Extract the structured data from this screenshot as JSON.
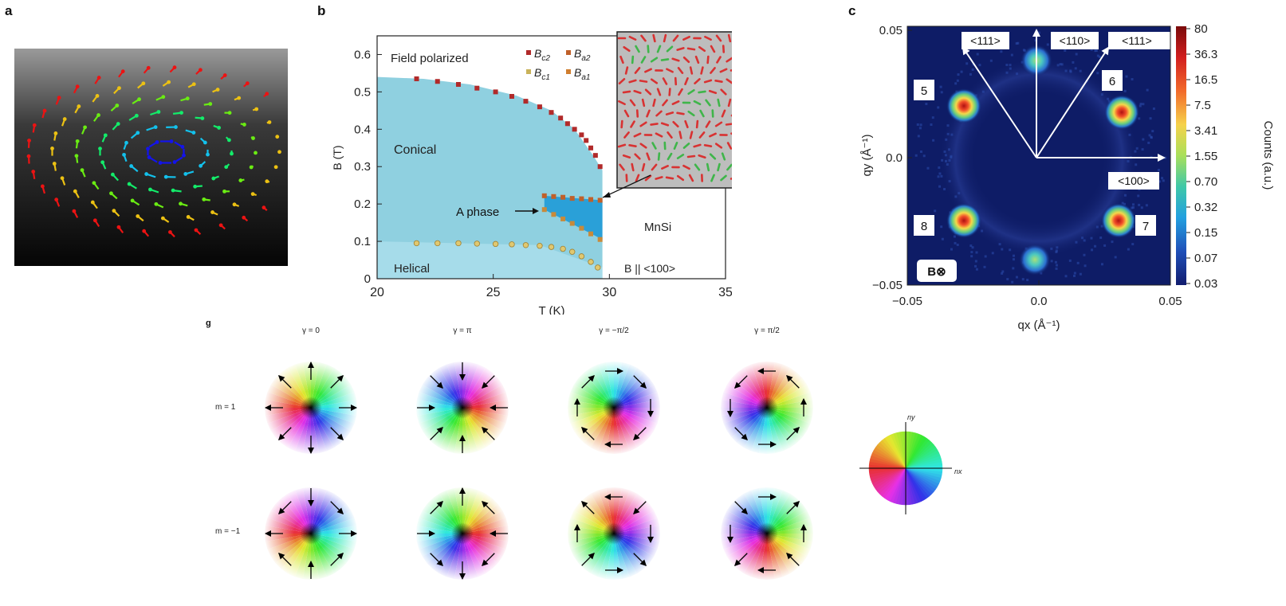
{
  "panels": {
    "a": {
      "letter": "a"
    },
    "b": {
      "letter": "b",
      "yaxis_label": "B (T)",
      "xaxis_label": "T (K)",
      "region_field_polarized": "Field polarized",
      "region_conical": "Conical",
      "region_a_phase": "A phase",
      "region_helical": "Helical",
      "material": "MnSi",
      "field_direction": "B || <100>",
      "legend": [
        {
          "symbol": "B",
          "sub": "c2",
          "color": "#b12a2a"
        },
        {
          "symbol": "B",
          "sub": "a2",
          "color": "#c0602a"
        },
        {
          "symbol": "B",
          "sub": "c1",
          "color": "#c9b25a"
        },
        {
          "symbol": "B",
          "sub": "a1",
          "color": "#d07e2f"
        }
      ],
      "xticks": [
        "20",
        "25",
        "30",
        "35"
      ],
      "yticks": [
        "0",
        "0.1",
        "0.2",
        "0.3",
        "0.4",
        "0.5",
        "0.6"
      ]
    },
    "c": {
      "letter": "c",
      "xaxis_label": "qx (Å⁻¹)",
      "yaxis_label": "qy (Å⁻¹)",
      "xticks": [
        "−0.05",
        "0.0",
        "0.05"
      ],
      "yticks": [
        "0.05",
        "0.0",
        "−0.05"
      ],
      "directions": [
        "<111>",
        "<110>",
        "<111>",
        "<100>"
      ],
      "spot_labels": [
        "5",
        "6",
        "8",
        "7"
      ],
      "field_symbol": "B⊗",
      "colorbar_label": "Counts (a.u.)",
      "colorbar_ticks": [
        "80",
        "36.3",
        "16.5",
        "7.5",
        "3.41",
        "1.55",
        "0.70",
        "0.32",
        "0.15",
        "0.07",
        "0.03"
      ]
    },
    "g": {
      "letter": "g",
      "column_headers": [
        "γ = 0",
        "γ = π",
        "γ = −π/2",
        "γ = π/2"
      ],
      "row_labels": [
        "m = 1",
        "m = −1"
      ],
      "wheel_x_label": "nx",
      "wheel_y_label": "ny"
    }
  },
  "chart_data": {
    "type": "scatter",
    "xlabel": "T (K)",
    "ylabel": "B (T)",
    "xlim": [
      20,
      35
    ],
    "ylim": [
      0,
      0.65
    ],
    "series": [
      {
        "name": "Bc2",
        "x": [
          21.7,
          22.6,
          23.5,
          24.3,
          25.1,
          25.8,
          26.4,
          27.0,
          27.5,
          27.9,
          28.2,
          28.5,
          28.8,
          29.0,
          29.2,
          29.4,
          29.6
        ],
        "y": [
          0.535,
          0.528,
          0.52,
          0.51,
          0.5,
          0.488,
          0.475,
          0.46,
          0.445,
          0.43,
          0.415,
          0.4,
          0.385,
          0.37,
          0.35,
          0.33,
          0.3
        ]
      },
      {
        "name": "Ba2",
        "x": [
          27.2,
          27.6,
          28.0,
          28.4,
          28.8,
          29.2,
          29.6
        ],
        "y": [
          0.222,
          0.22,
          0.218,
          0.215,
          0.214,
          0.212,
          0.21
        ]
      },
      {
        "name": "Bc1",
        "x": [
          21.7,
          22.6,
          23.5,
          24.3,
          25.1,
          25.8,
          26.4,
          27.0,
          27.5,
          28.0,
          28.4,
          28.8,
          29.2,
          29.5
        ],
        "y": [
          0.095,
          0.095,
          0.095,
          0.094,
          0.093,
          0.092,
          0.09,
          0.088,
          0.085,
          0.08,
          0.072,
          0.06,
          0.045,
          0.03
        ]
      },
      {
        "name": "Ba1",
        "x": [
          27.2,
          27.6,
          28.0,
          28.4,
          28.8,
          29.2,
          29.6
        ],
        "y": [
          0.185,
          0.172,
          0.16,
          0.148,
          0.135,
          0.12,
          0.105
        ]
      }
    ],
    "phase_boundary_top": [
      [
        20,
        0.54
      ],
      [
        22,
        0.535
      ],
      [
        24,
        0.52
      ],
      [
        26,
        0.49
      ],
      [
        27.5,
        0.45
      ],
      [
        28.5,
        0.4
      ],
      [
        29.3,
        0.33
      ],
      [
        29.7,
        0.29
      ]
    ],
    "phase_boundary_bottom": [
      [
        20,
        0.1
      ],
      [
        27,
        0.09
      ],
      [
        29.7,
        0.03
      ]
    ]
  }
}
